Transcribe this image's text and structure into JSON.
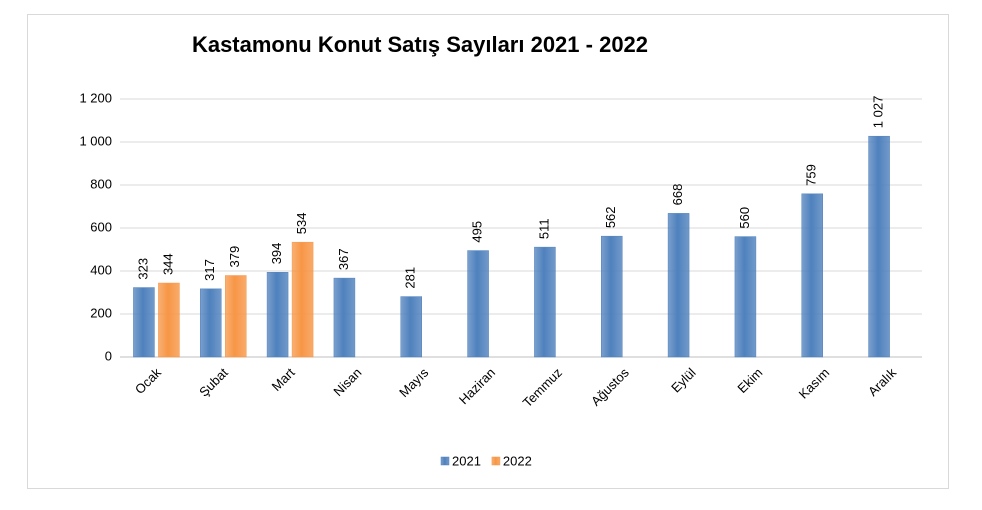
{
  "chart_data": {
    "type": "bar",
    "title": "Kastamonu Konut Satış Sayıları 2021 - 2022",
    "categories": [
      "Ocak",
      "Şubat",
      "Mart",
      "Nisan",
      "Mayıs",
      "Haziran",
      "Temmuz",
      "Ağustos",
      "Eylül",
      "Ekim",
      "Kasım",
      "Aralık"
    ],
    "series": [
      {
        "name": "2021",
        "color": "#4f81bd",
        "values": [
          323,
          317,
          394,
          367,
          281,
          495,
          511,
          562,
          668,
          560,
          759,
          1027
        ],
        "value_labels": [
          "323",
          "317",
          "394",
          "367",
          "281",
          "495",
          "511",
          "562",
          "668",
          "560",
          "759",
          "1 027"
        ]
      },
      {
        "name": "2022",
        "color": "#f79646",
        "values": [
          344,
          379,
          534,
          null,
          null,
          null,
          null,
          null,
          null,
          null,
          null,
          null
        ]
      }
    ],
    "ylim": [
      0,
      1200
    ],
    "yticks": [
      0,
      200,
      400,
      600,
      800,
      {
        "value": 1000,
        "label": "1 000"
      },
      {
        "value": 1200,
        "label": "1 200"
      }
    ],
    "grid": true,
    "legend": "bottom"
  }
}
